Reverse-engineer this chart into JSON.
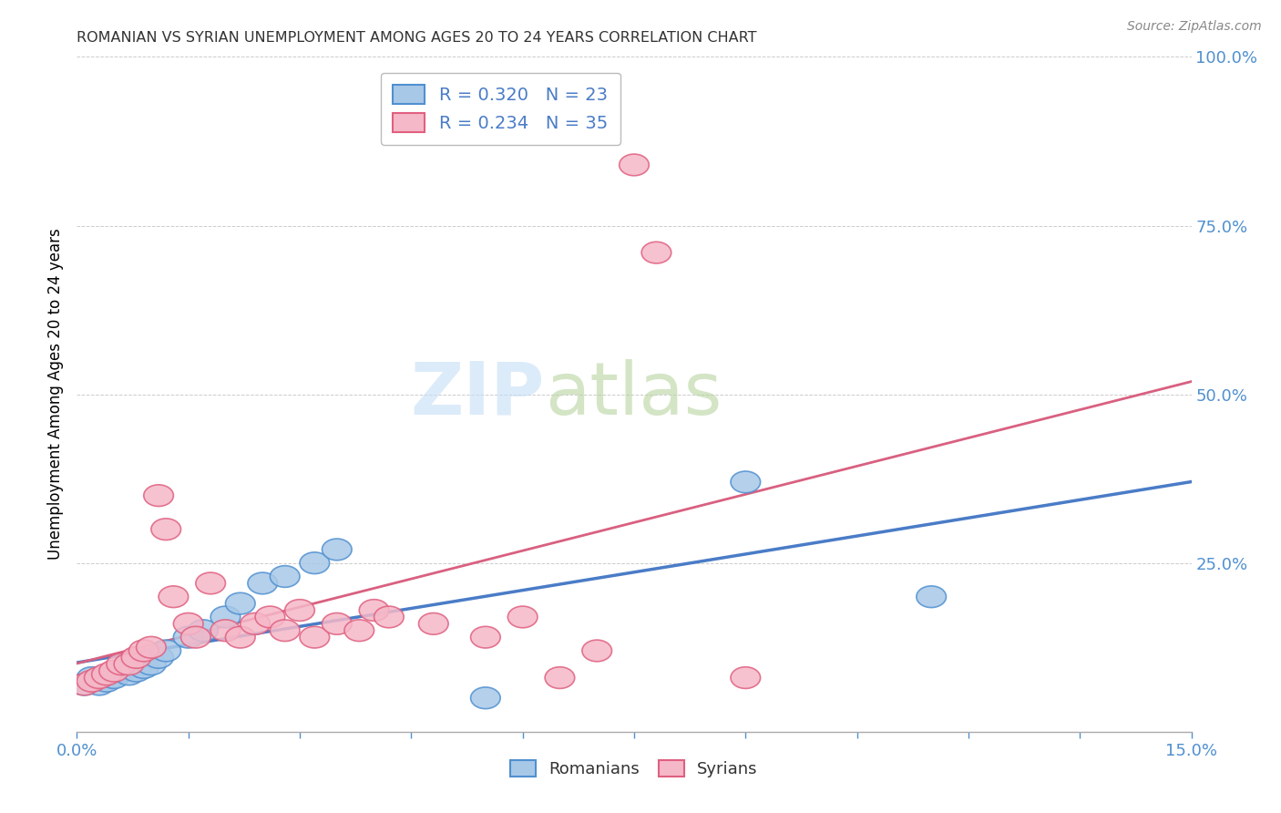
{
  "title": "ROMANIAN VS SYRIAN UNEMPLOYMENT AMONG AGES 20 TO 24 YEARS CORRELATION CHART",
  "source": "Source: ZipAtlas.com",
  "ylabel": "Unemployment Among Ages 20 to 24 years",
  "xlim": [
    0.0,
    0.15
  ],
  "ylim": [
    0.0,
    1.0
  ],
  "xticks": [
    0.0,
    0.015,
    0.03,
    0.045,
    0.06,
    0.075,
    0.09,
    0.105,
    0.12,
    0.135,
    0.15
  ],
  "xtick_labels": [
    "0.0%",
    "",
    "",
    "",
    "",
    "",
    "",
    "",
    "",
    "",
    "15.0%"
  ],
  "yticks": [
    0.0,
    0.25,
    0.5,
    0.75,
    1.0
  ],
  "ytick_labels": [
    "",
    "25.0%",
    "50.0%",
    "75.0%",
    "100.0%"
  ],
  "romanian_color": "#a8c8e8",
  "syrian_color": "#f5b8c8",
  "romanian_edge_color": "#5090d0",
  "syrian_edge_color": "#e06080",
  "romanian_line_color": "#4a7cc7",
  "syrian_line_color": "#d96080",
  "romanian_R": 0.32,
  "romanian_N": 23,
  "syrian_R": 0.234,
  "syrian_N": 35,
  "background_color": "#ffffff",
  "grid_color": "#cccccc",
  "legend_labels": [
    "Romanians",
    "Syrians"
  ],
  "romanian_points": [
    [
      0.001,
      0.07
    ],
    [
      0.002,
      0.08
    ],
    [
      0.003,
      0.07
    ],
    [
      0.004,
      0.075
    ],
    [
      0.005,
      0.08
    ],
    [
      0.006,
      0.09
    ],
    [
      0.007,
      0.085
    ],
    [
      0.008,
      0.09
    ],
    [
      0.009,
      0.095
    ],
    [
      0.01,
      0.1
    ],
    [
      0.011,
      0.11
    ],
    [
      0.012,
      0.12
    ],
    [
      0.015,
      0.14
    ],
    [
      0.017,
      0.15
    ],
    [
      0.02,
      0.17
    ],
    [
      0.022,
      0.19
    ],
    [
      0.025,
      0.22
    ],
    [
      0.028,
      0.23
    ],
    [
      0.032,
      0.25
    ],
    [
      0.035,
      0.27
    ],
    [
      0.055,
      0.05
    ],
    [
      0.09,
      0.37
    ],
    [
      0.115,
      0.2
    ]
  ],
  "syrian_points": [
    [
      0.001,
      0.07
    ],
    [
      0.002,
      0.075
    ],
    [
      0.003,
      0.08
    ],
    [
      0.004,
      0.085
    ],
    [
      0.005,
      0.09
    ],
    [
      0.006,
      0.1
    ],
    [
      0.007,
      0.1
    ],
    [
      0.008,
      0.11
    ],
    [
      0.009,
      0.12
    ],
    [
      0.01,
      0.125
    ],
    [
      0.011,
      0.35
    ],
    [
      0.012,
      0.3
    ],
    [
      0.013,
      0.2
    ],
    [
      0.015,
      0.16
    ],
    [
      0.016,
      0.14
    ],
    [
      0.018,
      0.22
    ],
    [
      0.02,
      0.15
    ],
    [
      0.022,
      0.14
    ],
    [
      0.024,
      0.16
    ],
    [
      0.026,
      0.17
    ],
    [
      0.028,
      0.15
    ],
    [
      0.03,
      0.18
    ],
    [
      0.032,
      0.14
    ],
    [
      0.035,
      0.16
    ],
    [
      0.038,
      0.15
    ],
    [
      0.04,
      0.18
    ],
    [
      0.042,
      0.17
    ],
    [
      0.048,
      0.16
    ],
    [
      0.055,
      0.14
    ],
    [
      0.06,
      0.17
    ],
    [
      0.065,
      0.08
    ],
    [
      0.07,
      0.12
    ],
    [
      0.075,
      0.84
    ],
    [
      0.078,
      0.71
    ],
    [
      0.09,
      0.08
    ]
  ]
}
